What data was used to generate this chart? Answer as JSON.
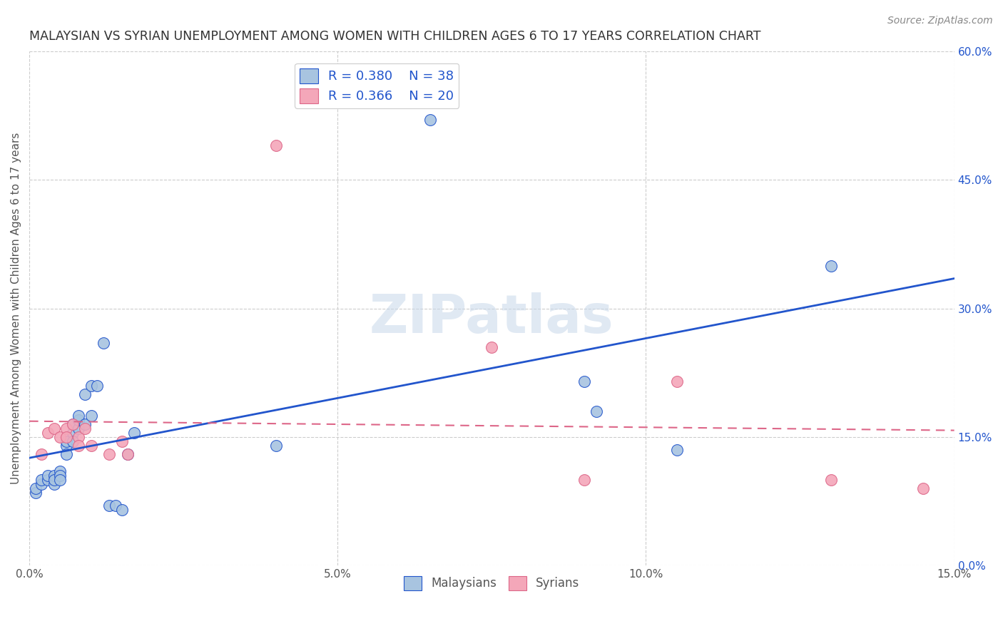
{
  "title": "MALAYSIAN VS SYRIAN UNEMPLOYMENT AMONG WOMEN WITH CHILDREN AGES 6 TO 17 YEARS CORRELATION CHART",
  "source": "Source: ZipAtlas.com",
  "ylabel": "Unemployment Among Women with Children Ages 6 to 17 years",
  "xlim": [
    0,
    0.15
  ],
  "ylim": [
    0,
    0.6
  ],
  "xticks": [
    0.0,
    0.05,
    0.1,
    0.15
  ],
  "yticks_right": [
    0.0,
    0.15,
    0.3,
    0.45,
    0.6
  ],
  "xtick_labels": [
    "0.0%",
    "5.0%",
    "10.0%",
    "15.0%"
  ],
  "ytick_labels_right": [
    "0.0%",
    "15.0%",
    "30.0%",
    "45.0%",
    "60.0%"
  ],
  "legend_R_malaysian": "R = 0.380",
  "legend_N_malaysian": "N = 38",
  "legend_R_syrian": "R = 0.366",
  "legend_N_syrian": "N = 20",
  "color_malaysian": "#a8c4e0",
  "color_syrian": "#f4a7b9",
  "color_line_malaysian": "#2255cc",
  "color_line_syrian": "#dd6688",
  "color_title": "#333333",
  "color_source": "#888888",
  "color_legend_text": "#2255cc",
  "background_color": "#ffffff",
  "grid_color": "#cccccc",
  "watermark": "ZIPatlas",
  "malaysian_x": [
    0.001,
    0.001,
    0.002,
    0.002,
    0.003,
    0.003,
    0.004,
    0.004,
    0.004,
    0.005,
    0.005,
    0.005,
    0.006,
    0.006,
    0.006,
    0.007,
    0.007,
    0.007,
    0.008,
    0.008,
    0.008,
    0.009,
    0.009,
    0.01,
    0.01,
    0.011,
    0.012,
    0.013,
    0.014,
    0.015,
    0.016,
    0.017,
    0.04,
    0.065,
    0.09,
    0.092,
    0.105,
    0.13
  ],
  "malaysian_y": [
    0.085,
    0.09,
    0.095,
    0.1,
    0.1,
    0.105,
    0.095,
    0.105,
    0.1,
    0.11,
    0.105,
    0.1,
    0.14,
    0.13,
    0.145,
    0.155,
    0.145,
    0.165,
    0.16,
    0.17,
    0.175,
    0.165,
    0.2,
    0.175,
    0.21,
    0.21,
    0.26,
    0.07,
    0.07,
    0.065,
    0.13,
    0.155,
    0.14,
    0.52,
    0.215,
    0.18,
    0.135,
    0.35
  ],
  "syrian_x": [
    0.002,
    0.003,
    0.004,
    0.005,
    0.006,
    0.006,
    0.007,
    0.008,
    0.008,
    0.009,
    0.01,
    0.013,
    0.015,
    0.016,
    0.04,
    0.075,
    0.09,
    0.105,
    0.13,
    0.145
  ],
  "syrian_y": [
    0.13,
    0.155,
    0.16,
    0.15,
    0.16,
    0.15,
    0.165,
    0.15,
    0.14,
    0.16,
    0.14,
    0.13,
    0.145,
    0.13,
    0.49,
    0.255,
    0.1,
    0.215,
    0.1,
    0.09
  ]
}
